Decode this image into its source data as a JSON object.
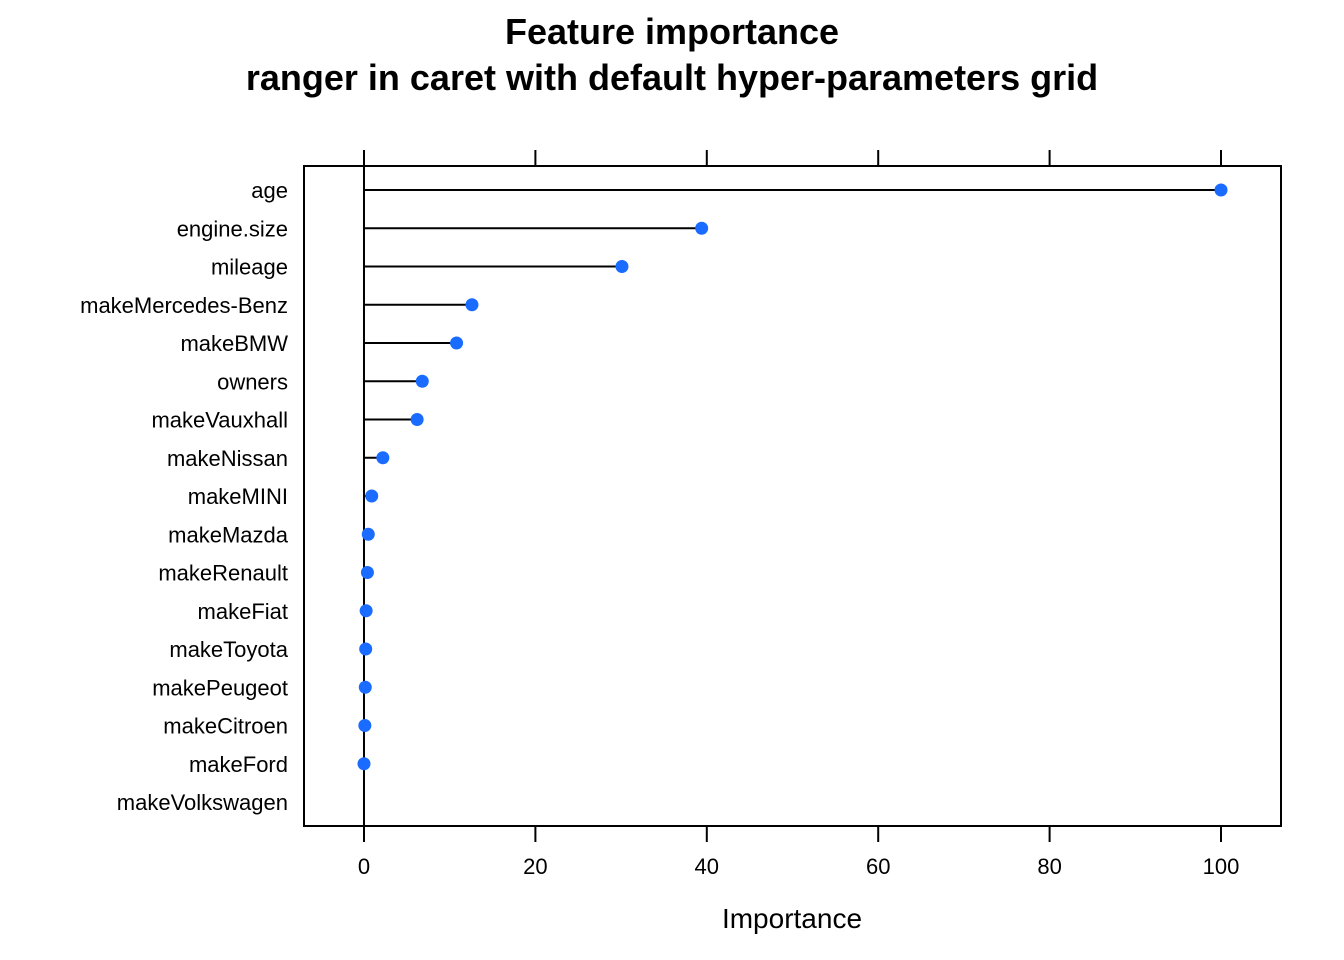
{
  "chart_data": {
    "type": "lollipop",
    "title": "Feature importance",
    "subtitle": "ranger in caret with default hyper-parameters grid",
    "xlabel": "Importance",
    "ylabel": "",
    "xlim": [
      -7,
      107
    ],
    "xticks": [
      0,
      20,
      40,
      60,
      80,
      100
    ],
    "baseline": 0,
    "grid": false,
    "point_color": "#1a6bff",
    "line_color": "#000000",
    "categories": [
      "age",
      "engine.size",
      "mileage",
      "makeMercedes-Benz",
      "makeBMW",
      "owners",
      "makeVauxhall",
      "makeNissan",
      "makeMINI",
      "makeMazda",
      "makeRenault",
      "makeFiat",
      "makeToyota",
      "makePeugeot",
      "makeCitroen",
      "makeFord",
      "makeVolkswagen"
    ],
    "values": [
      100,
      39.4,
      30.1,
      12.6,
      10.8,
      6.8,
      6.2,
      2.2,
      0.9,
      0.5,
      0.4,
      0.25,
      0.2,
      0.15,
      0.1,
      0.0,
      null
    ]
  }
}
